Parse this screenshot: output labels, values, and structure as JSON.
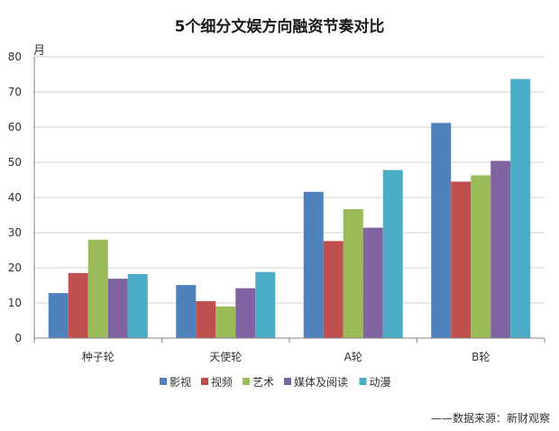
{
  "chart_data": {
    "type": "bar",
    "title": "5个细分文娱方向融资节奏对比",
    "ylabel": "月",
    "xlabel": "",
    "ylim": [
      0,
      80
    ],
    "yticks": [
      0,
      10,
      20,
      30,
      40,
      50,
      60,
      70,
      80
    ],
    "categories": [
      "种子轮",
      "天使轮",
      "A轮",
      "B轮"
    ],
    "series": [
      {
        "name": "影视",
        "color": "#4f81bd",
        "values": [
          12.8,
          15.1,
          41.6,
          61.2
        ]
      },
      {
        "name": "视频",
        "color": "#c0504d",
        "values": [
          18.5,
          10.5,
          27.6,
          44.5
        ]
      },
      {
        "name": "艺术",
        "color": "#9bbb59",
        "values": [
          28.0,
          9.0,
          36.7,
          46.3
        ]
      },
      {
        "name": "媒体及阅读",
        "color": "#8064a2",
        "values": [
          16.9,
          14.2,
          31.4,
          50.4
        ]
      },
      {
        "name": "动漫",
        "color": "#4bacc6",
        "values": [
          18.2,
          18.8,
          47.8,
          73.7
        ]
      }
    ],
    "grid": true,
    "legend": "bottom"
  },
  "source_note": "——数据来源：新财观察"
}
